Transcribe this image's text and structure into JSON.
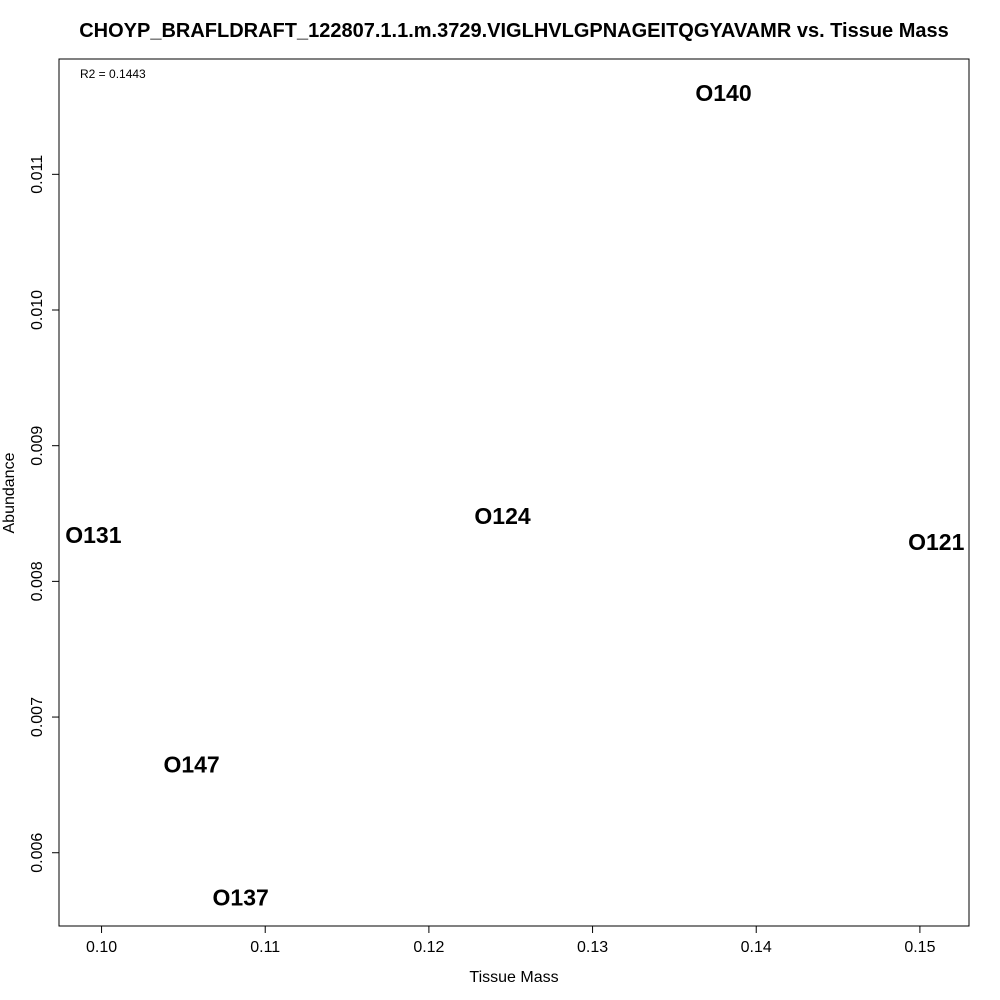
{
  "chart_data": {
    "type": "scatter",
    "title": "CHOYP_BRAFLDRAFT_122807.1.1.m.3729.VIGLHVLGPNAGEITQGYAVAMR vs. Tissue Mass",
    "xlabel": "Tissue Mass",
    "ylabel": "Abundance",
    "annotation": "R2 = 0.1443",
    "xlim": [
      0.0974,
      0.153
    ],
    "ylim": [
      0.00546,
      0.01185
    ],
    "x_ticks": [
      0.1,
      0.11,
      0.12,
      0.13,
      0.14,
      0.15
    ],
    "x_tick_labels": [
      "0.10",
      "0.11",
      "0.12",
      "0.13",
      "0.14",
      "0.15"
    ],
    "y_ticks": [
      0.006,
      0.007,
      0.008,
      0.009,
      0.01,
      0.011
    ],
    "y_tick_labels": [
      "0.006",
      "0.007",
      "0.008",
      "0.009",
      "0.010",
      "0.011"
    ],
    "grid": false,
    "points": [
      {
        "label": "O140",
        "x": 0.138,
        "y": 0.0116
      },
      {
        "label": "O131",
        "x": 0.0995,
        "y": 0.00834
      },
      {
        "label": "O124",
        "x": 0.1245,
        "y": 0.00848
      },
      {
        "label": "O121",
        "x": 0.151,
        "y": 0.00829
      },
      {
        "label": "O147",
        "x": 0.1055,
        "y": 0.00665
      },
      {
        "label": "O137",
        "x": 0.1085,
        "y": 0.00567
      }
    ]
  }
}
